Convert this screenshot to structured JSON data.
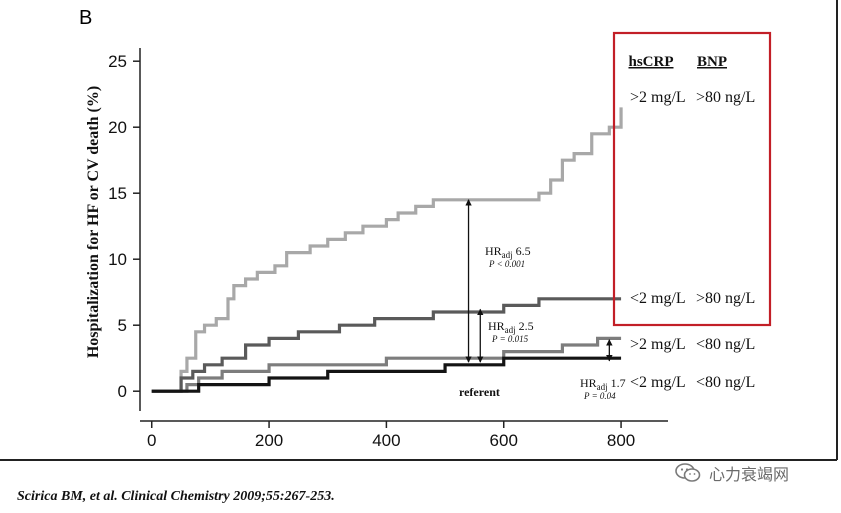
{
  "panel_label": "B",
  "citation": "Scirica BM, et al. Clinical Chemistry 2009;55:267-253.",
  "watermark": {
    "text": "心力衰竭网",
    "icon": "wechat-icon"
  },
  "colors": {
    "line_light_gray": "#a8a8a8",
    "line_dark_gray": "#5a5a5a",
    "line_mid_gray": "#7d7d7d",
    "line_black": "#141414",
    "highlight_box": "#c21f27"
  },
  "legend": {
    "headers": [
      "hsCRP",
      "BNP"
    ],
    "rows": [
      {
        "hscrp": ">2 mg/L",
        "bnp": ">80 ng/L"
      },
      {
        "hscrp": "<2 mg/L",
        "bnp": ">80 ng/L"
      },
      {
        "hscrp": ">2 mg/L",
        "bnp": "<80 ng/L"
      },
      {
        "hscrp": "<2 mg/L",
        "bnp": "<80 ng/L"
      }
    ]
  },
  "chart_data": {
    "type": "line",
    "subtype": "step",
    "title": "",
    "xlabel": "",
    "ylabel": "Hospitalization for HF or CV death (%)",
    "xlim": [
      -20,
      880
    ],
    "ylim": [
      -1.5,
      26
    ],
    "x_ticks": [
      0,
      200,
      400,
      600,
      800
    ],
    "y_ticks": [
      0,
      5,
      10,
      15,
      20,
      25
    ],
    "series": [
      {
        "name": "hsCRP >2 mg/L, BNP >80 ng/L",
        "color": "#a8a8a8",
        "points": [
          [
            0,
            0
          ],
          [
            40,
            0
          ],
          [
            50,
            1.5
          ],
          [
            60,
            2.5
          ],
          [
            75,
            4.5
          ],
          [
            90,
            5
          ],
          [
            110,
            5.5
          ],
          [
            130,
            7
          ],
          [
            140,
            8
          ],
          [
            160,
            8.5
          ],
          [
            180,
            9
          ],
          [
            200,
            9
          ],
          [
            210,
            9.5
          ],
          [
            230,
            10.5
          ],
          [
            250,
            10.5
          ],
          [
            270,
            11
          ],
          [
            300,
            11.5
          ],
          [
            330,
            12
          ],
          [
            360,
            12.5
          ],
          [
            400,
            13
          ],
          [
            420,
            13.5
          ],
          [
            450,
            14
          ],
          [
            480,
            14.5
          ],
          [
            640,
            14.5
          ],
          [
            660,
            15
          ],
          [
            680,
            16
          ],
          [
            700,
            17.5
          ],
          [
            720,
            18
          ],
          [
            750,
            19.5
          ],
          [
            780,
            20
          ],
          [
            800,
            21.5
          ]
        ]
      },
      {
        "name": "hsCRP <2 mg/L, BNP >80 ng/L",
        "color": "#5a5a5a",
        "points": [
          [
            0,
            0
          ],
          [
            40,
            0
          ],
          [
            50,
            1
          ],
          [
            70,
            1.5
          ],
          [
            90,
            2
          ],
          [
            120,
            2.5
          ],
          [
            160,
            3.5
          ],
          [
            200,
            4
          ],
          [
            250,
            4.5
          ],
          [
            320,
            5
          ],
          [
            380,
            5.5
          ],
          [
            480,
            6
          ],
          [
            600,
            6.5
          ],
          [
            660,
            7
          ],
          [
            800,
            7
          ]
        ]
      },
      {
        "name": "hsCRP >2 mg/L, BNP <80 ng/L",
        "color": "#7d7d7d",
        "points": [
          [
            0,
            0
          ],
          [
            40,
            0
          ],
          [
            60,
            0.5
          ],
          [
            80,
            1
          ],
          [
            120,
            1.5
          ],
          [
            200,
            2
          ],
          [
            300,
            2
          ],
          [
            400,
            2.5
          ],
          [
            500,
            2.5
          ],
          [
            600,
            3
          ],
          [
            700,
            3.5
          ],
          [
            760,
            4
          ],
          [
            800,
            4
          ]
        ]
      },
      {
        "name": "hsCRP <2 mg/L, BNP <80 ng/L",
        "color": "#141414",
        "points": [
          [
            0,
            0
          ],
          [
            50,
            0
          ],
          [
            80,
            0.5
          ],
          [
            200,
            1
          ],
          [
            300,
            1.5
          ],
          [
            500,
            2
          ],
          [
            600,
            2.5
          ],
          [
            800,
            2.5
          ]
        ]
      }
    ],
    "annotations": [
      {
        "label": "HR",
        "sub": "adj",
        "value": "6.5",
        "p": "P < 0.001",
        "arrow": [
          540,
          2.2,
          14.5
        ]
      },
      {
        "label": "HR",
        "sub": "adj",
        "value": "2.5",
        "p": "P = 0.015",
        "arrow": [
          560,
          2.2,
          6.2
        ]
      },
      {
        "label": "HR",
        "sub": "adj",
        "value": "1.7",
        "p": "P = 0.04",
        "arrow": [
          780,
          2.3,
          3.9
        ]
      }
    ],
    "referent_label": "referent"
  }
}
